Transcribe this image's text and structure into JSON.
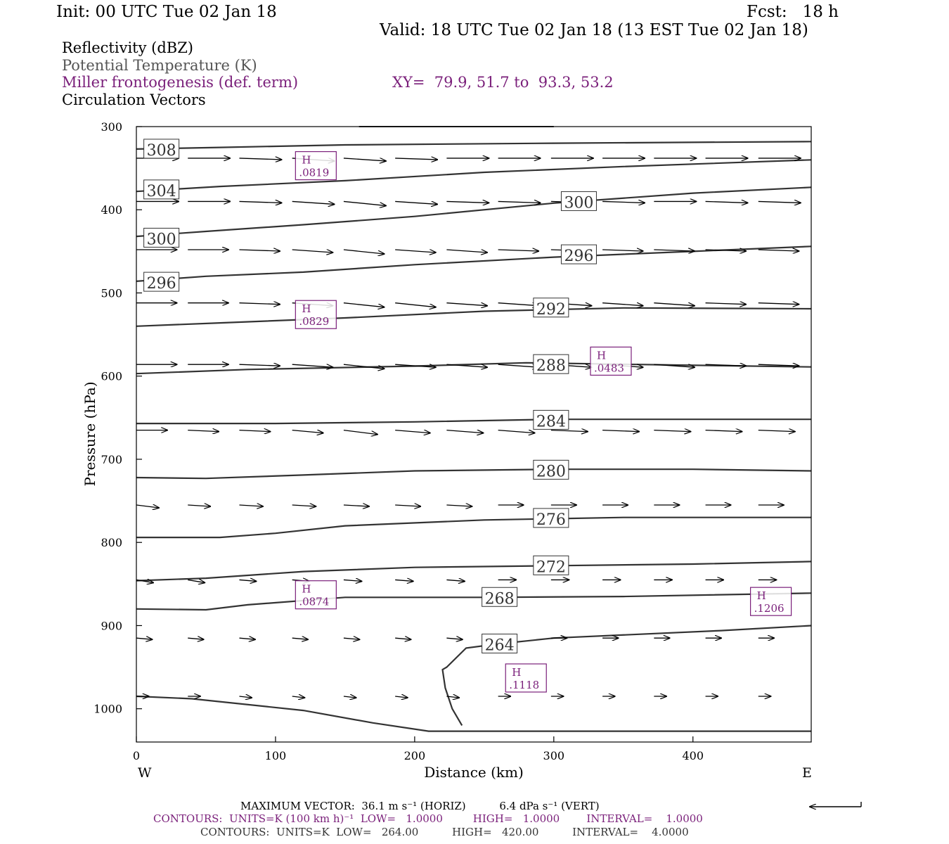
{
  "header": {
    "init": "Init: 00 UTC Tue 02 Jan 18",
    "fcst": "Fcst:   18 h",
    "valid": "Valid: 18 UTC Tue 02 Jan 18 (13 EST Tue 02 Jan 18)"
  },
  "legend": {
    "field1": "Reflectivity (dBZ)",
    "field2": "Potential Temperature (K)",
    "field3": "Miller frontogenesis (def. term)",
    "xy": "XY=  79.9, 51.7 to  93.3, 53.2",
    "field4": "Circulation Vectors"
  },
  "footer": {
    "max_vector": "MAXIMUM VECTOR:  36.1 m s⁻¹ (HORIZ)          6.4 dPa s⁻¹ (VERT)",
    "contours_fronto": "CONTOURS:  UNITS=K (100 km h)⁻¹  LOW=   1.0000         HIGH=   1.0000        INTERVAL=    1.0000",
    "contours_theta": "CONTOURS:  UNITS=K  LOW=   264.00          HIGH=   420.00          INTERVAL=    4.0000"
  },
  "colors": {
    "theta_contour": "#333333",
    "frontogenesis": "#7a1f7a",
    "vector": "#000000"
  },
  "chart_data": {
    "type": "cross-section",
    "xlabel": "Distance (km)",
    "ylabel": "Pressure (hPa)",
    "x_ticks": [
      0,
      100,
      200,
      300,
      400
    ],
    "y_ticks": [
      300,
      400,
      500,
      600,
      700,
      800,
      900,
      1000
    ],
    "xlim": [
      0,
      485
    ],
    "ylim": [
      300,
      1040
    ],
    "y_inverted": true,
    "left_end_label": "W",
    "right_end_label": "E",
    "theta_contours": [
      {
        "label": "308",
        "points": [
          [
            0,
            327
          ],
          [
            60,
            325
          ],
          [
            150,
            322
          ],
          [
            300,
            320
          ],
          [
            485,
            318
          ]
        ],
        "label_at": [
          18,
          327
        ]
      },
      {
        "label": "304",
        "points": [
          [
            0,
            378
          ],
          [
            60,
            372
          ],
          [
            150,
            365
          ],
          [
            250,
            355
          ],
          [
            350,
            348
          ],
          [
            485,
            340
          ]
        ],
        "label_at": [
          18,
          376
        ]
      },
      {
        "label": "300",
        "points": [
          [
            0,
            432
          ],
          [
            50,
            426
          ],
          [
            120,
            418
          ],
          [
            200,
            408
          ],
          [
            300,
            392
          ],
          [
            400,
            380
          ],
          [
            485,
            373
          ]
        ],
        "label_at": [
          18,
          434
        ],
        "label2": "300",
        "label2_at": [
          318,
          390
        ]
      },
      {
        "label": "296",
        "points": [
          [
            0,
            486
          ],
          [
            50,
            480
          ],
          [
            120,
            475
          ],
          [
            200,
            466
          ],
          [
            300,
            457
          ],
          [
            400,
            450
          ],
          [
            485,
            444
          ]
        ],
        "label_at": [
          18,
          487
        ],
        "label2": "296",
        "label2_at": [
          318,
          454
        ]
      },
      {
        "label": "292",
        "points": [
          [
            0,
            540
          ],
          [
            60,
            536
          ],
          [
            150,
            530
          ],
          [
            250,
            522
          ],
          [
            350,
            518
          ],
          [
            485,
            519
          ]
        ],
        "label_at": [
          298,
          518
        ]
      },
      {
        "label": "288",
        "points": [
          [
            0,
            597
          ],
          [
            80,
            592
          ],
          [
            200,
            588
          ],
          [
            280,
            584
          ],
          [
            360,
            586
          ],
          [
            485,
            589
          ]
        ],
        "label_at": [
          298,
          586
        ]
      },
      {
        "label": "284",
        "points": [
          [
            0,
            657
          ],
          [
            100,
            657
          ],
          [
            200,
            655
          ],
          [
            300,
            652
          ],
          [
            400,
            652
          ],
          [
            485,
            652
          ]
        ],
        "label_at": [
          298,
          653
        ]
      },
      {
        "label": "280",
        "points": [
          [
            0,
            722
          ],
          [
            50,
            723
          ],
          [
            120,
            719
          ],
          [
            200,
            714
          ],
          [
            300,
            712
          ],
          [
            400,
            712
          ],
          [
            485,
            714
          ]
        ],
        "label_at": [
          298,
          713
        ]
      },
      {
        "label": "276",
        "points": [
          [
            0,
            794
          ],
          [
            60,
            794
          ],
          [
            100,
            789
          ],
          [
            150,
            780
          ],
          [
            250,
            773
          ],
          [
            350,
            770
          ],
          [
            485,
            770
          ]
        ],
        "label_at": [
          298,
          771
        ]
      },
      {
        "label": "272",
        "points": [
          [
            0,
            846
          ],
          [
            50,
            843
          ],
          [
            120,
            835
          ],
          [
            200,
            830
          ],
          [
            300,
            828
          ],
          [
            400,
            826
          ],
          [
            485,
            823
          ]
        ],
        "label_at": [
          298,
          828
        ]
      },
      {
        "label": "268",
        "points": [
          [
            0,
            880
          ],
          [
            50,
            881
          ],
          [
            80,
            875
          ],
          [
            150,
            866
          ],
          [
            250,
            866
          ],
          [
            350,
            865
          ],
          [
            485,
            861
          ]
        ],
        "label_at": [
          261,
          866
        ]
      },
      {
        "label": "264",
        "points": [
          [
            0,
            985
          ],
          [
            40,
            988
          ],
          [
            120,
            1002
          ],
          [
            170,
            1017
          ],
          [
            210,
            1027
          ],
          [
            300,
            1027
          ],
          [
            485,
            1027
          ]
        ],
        "label_at": [
          261,
          922
        ],
        "closed_branch": [
          [
            485,
            900
          ],
          [
            420,
            906
          ],
          [
            300,
            915
          ],
          [
            260,
            922
          ],
          [
            237,
            927
          ],
          [
            223,
            950
          ],
          [
            220,
            953
          ],
          [
            222,
            975
          ],
          [
            227,
            1000
          ],
          [
            234,
            1020
          ]
        ]
      }
    ],
    "frontogenesis_maxima": [
      {
        "label": "H",
        "value": ".0819",
        "x": 129,
        "p": 347
      },
      {
        "label": "H",
        "value": ".0829",
        "x": 129,
        "p": 526
      },
      {
        "label": "H",
        "value": ".0483",
        "x": 341,
        "p": 582
      },
      {
        "label": "H",
        "value": ".0874",
        "x": 129,
        "p": 863
      },
      {
        "label": "H",
        "value": ".1118",
        "x": 280,
        "p": 963
      },
      {
        "label": "H",
        "value": ".1206",
        "x": 456,
        "p": 871
      }
    ],
    "vectors": {
      "columns": [
        0,
        37,
        74,
        112,
        149,
        186,
        223,
        260,
        298,
        335,
        372,
        409,
        447
      ],
      "rows": [
        {
          "p": 338,
          "u": [
            0.75,
            0.75,
            0.75,
            0.75,
            0.75,
            0.75,
            0.75,
            0.75,
            0.75,
            0.75,
            0.75,
            0.75,
            0.75
          ],
          "w": [
            0,
            0,
            -1,
            -2,
            -2,
            -1,
            0,
            0,
            0,
            0,
            0,
            0,
            0
          ]
        },
        {
          "p": 390,
          "u": [
            0.75,
            0.75,
            0.75,
            0.75,
            0.75,
            0.75,
            0.75,
            0.75,
            0.75,
            0.75,
            0.75,
            0.75,
            0.75
          ],
          "w": [
            0,
            0,
            -1,
            -2,
            -3,
            -2,
            -1,
            -1,
            -1,
            -1,
            0,
            -1,
            -1
          ]
        },
        {
          "p": 448,
          "u": [
            0.72,
            0.72,
            0.72,
            0.72,
            0.72,
            0.72,
            0.72,
            0.72,
            0.72,
            0.72,
            0.72,
            0.72,
            0.72
          ],
          "w": [
            0,
            0,
            -1,
            -2,
            -3,
            -2,
            -2,
            -1,
            -1,
            -1,
            -1,
            -1,
            -1
          ]
        },
        {
          "p": 512,
          "u": [
            0.72,
            0.72,
            0.72,
            0.72,
            0.72,
            0.72,
            0.72,
            0.72,
            0.72,
            0.72,
            0.72,
            0.72,
            0.72
          ],
          "w": [
            0,
            0,
            -1,
            -2,
            -3,
            -3,
            -2,
            -2,
            -2,
            -2,
            -2,
            -1,
            -1
          ]
        },
        {
          "p": 586,
          "u": [
            0.72,
            0.72,
            0.72,
            0.72,
            0.72,
            0.72,
            0.72,
            0.72,
            0.72,
            0.72,
            0.72,
            0.72,
            0.72
          ],
          "w": [
            0,
            0,
            -1,
            -2,
            -3,
            -2,
            -2,
            -2,
            -2,
            -2,
            -2,
            -1,
            -1
          ]
        },
        {
          "p": 665,
          "u": [
            0.55,
            0.55,
            0.55,
            0.55,
            0.6,
            0.62,
            0.65,
            0.65,
            0.65,
            0.65,
            0.65,
            0.65,
            0.65
          ],
          "w": [
            0,
            -1,
            -1,
            -2,
            -3,
            -2,
            -2,
            -2,
            -1,
            -1,
            -1,
            -1,
            -1
          ]
        },
        {
          "p": 755,
          "u": [
            0.4,
            0.4,
            0.42,
            0.42,
            0.45,
            0.45,
            0.45,
            0.45,
            0.45,
            0.45,
            0.45,
            0.45,
            0.45
          ],
          "w": [
            -2,
            -1,
            -1,
            -1,
            -1,
            -1,
            -1,
            0,
            0,
            0,
            0,
            0,
            0
          ]
        },
        {
          "p": 845,
          "u": [
            0.3,
            0.3,
            0.3,
            0.3,
            0.32,
            0.32,
            0.32,
            0.32,
            0.32,
            0.32,
            0.32,
            0.32,
            0.32
          ],
          "w": [
            -2,
            -2,
            -1,
            -1,
            -1,
            -1,
            -1,
            0,
            0,
            0,
            0,
            0,
            0
          ]
        },
        {
          "p": 915,
          "u": [
            0.28,
            0.28,
            0.28,
            0.28,
            0.28,
            0.28,
            0.28,
            0.28,
            0.28,
            0.28,
            0.28,
            0.28,
            0.28
          ],
          "w": [
            -1,
            -1,
            -1,
            -1,
            -1,
            -1,
            -1,
            0,
            0,
            0,
            0,
            0,
            0
          ]
        },
        {
          "p": 985,
          "u": [
            0.22,
            0.22,
            0.22,
            0.22,
            0.22,
            0.22,
            0.22,
            0.22,
            0.22,
            0.22,
            0.22,
            0.22,
            0.22
          ],
          "w": [
            0,
            0,
            -1,
            -1,
            -1,
            -1,
            -1,
            0,
            0,
            0,
            0,
            0,
            0
          ]
        }
      ]
    }
  }
}
